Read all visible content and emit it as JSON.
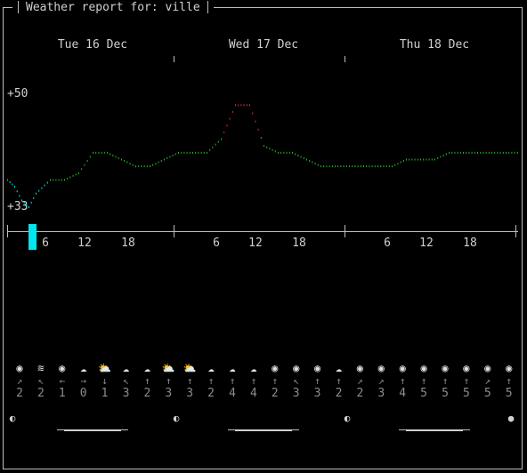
{
  "header": {
    "title": "Weather report for: ville"
  },
  "days": [
    "Tue 16 Dec",
    "Wed 17 Dec",
    "Thu 18 Dec"
  ],
  "y_axis": {
    "top_label": "+50",
    "bottom_label": "+33"
  },
  "hour_labels": [
    "6",
    "12",
    "18"
  ],
  "colors": {
    "cold": "#00e5ee",
    "mild": "#2fb32f",
    "warm": "#e03030",
    "text": "#d0d0d0",
    "dim": "#8c8c8c"
  },
  "chart_data": {
    "type": "line",
    "title": "",
    "xlabel": "",
    "ylabel": "",
    "ylim": [
      33,
      50
    ],
    "x_unit": "hours from Tue 16 Dec 00:00",
    "series": [
      {
        "x": [
          0,
          1,
          2,
          3,
          4,
          6,
          8,
          10,
          12,
          14,
          16,
          18,
          20,
          22,
          24,
          26,
          28,
          30,
          32,
          34,
          36,
          38,
          40,
          42,
          44,
          46,
          48,
          50,
          52,
          54,
          56,
          58,
          60,
          62,
          64,
          66,
          68,
          70,
          72
        ],
        "values": [
          37,
          36,
          34,
          33,
          35,
          37,
          37,
          38,
          41,
          41,
          40,
          39,
          39,
          40,
          41,
          41,
          41,
          43,
          48,
          48,
          42,
          41,
          41,
          40,
          39,
          39,
          39,
          39,
          39,
          39,
          40,
          40,
          40,
          41,
          41,
          41,
          41,
          41,
          41
        ]
      }
    ]
  },
  "forecast_slots": [
    {
      "icon": "sun",
      "arrow": "↗",
      "speed": "2"
    },
    {
      "icon": "fog",
      "arrow": "↖",
      "speed": "2"
    },
    {
      "icon": "sun",
      "arrow": "←",
      "speed": "1"
    },
    {
      "icon": "cloud",
      "arrow": "→",
      "speed": "0"
    },
    {
      "icon": "partly-cloudy",
      "arrow": "↓",
      "speed": "1"
    },
    {
      "icon": "cloud",
      "arrow": "↖",
      "speed": "3"
    },
    {
      "icon": "cloud",
      "arrow": "↑",
      "speed": "2"
    },
    {
      "icon": "partly-cloudy",
      "arrow": "↑",
      "speed": "3"
    },
    {
      "icon": "partly-cloudy",
      "arrow": "↑",
      "speed": "3"
    },
    {
      "icon": "cloud",
      "arrow": "↑",
      "speed": "2"
    },
    {
      "icon": "cloud",
      "arrow": "↑",
      "speed": "4"
    },
    {
      "icon": "cloud",
      "arrow": "↑",
      "speed": "4"
    },
    {
      "icon": "sun",
      "arrow": "↑",
      "speed": "2"
    },
    {
      "icon": "sun",
      "arrow": "↖",
      "speed": "3"
    },
    {
      "icon": "sun",
      "arrow": "↑",
      "speed": "3"
    },
    {
      "icon": "cloud",
      "arrow": "↑",
      "speed": "2"
    },
    {
      "icon": "sun",
      "arrow": "↗",
      "speed": "2"
    },
    {
      "icon": "sun",
      "arrow": "↗",
      "speed": "3"
    },
    {
      "icon": "sun",
      "arrow": "↑",
      "speed": "4"
    },
    {
      "icon": "sun",
      "arrow": "↑",
      "speed": "5"
    },
    {
      "icon": "sun",
      "arrow": "↑",
      "speed": "5"
    },
    {
      "icon": "sun",
      "arrow": "↑",
      "speed": "5"
    },
    {
      "icon": "sun",
      "arrow": "↗",
      "speed": "5"
    },
    {
      "icon": "sun",
      "arrow": "↑",
      "speed": "5"
    }
  ],
  "moon_phases": [
    "half-moon",
    "half-moon",
    "half-moon",
    "full-moon"
  ]
}
